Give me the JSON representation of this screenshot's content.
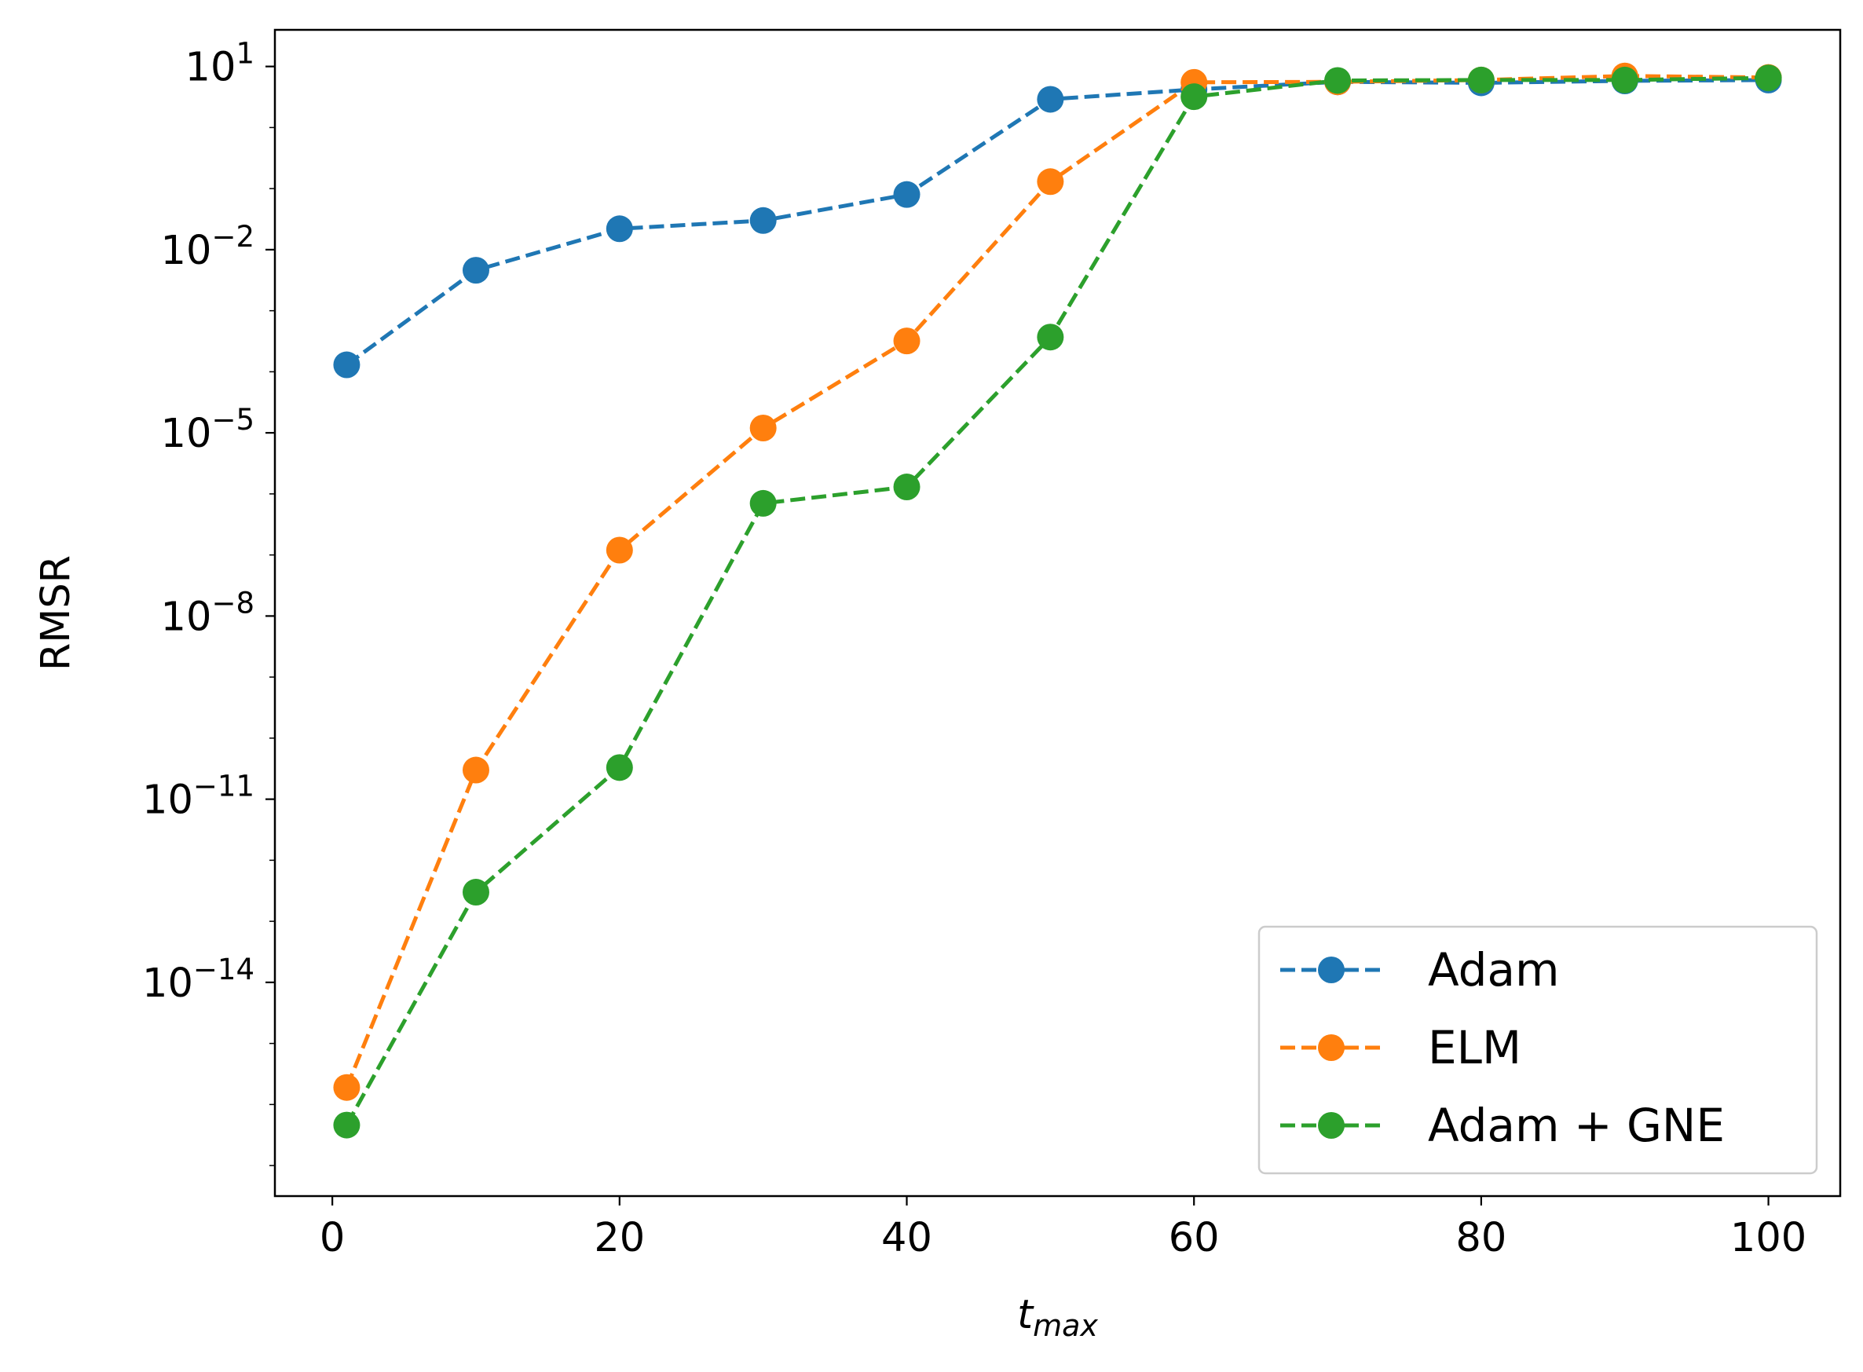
{
  "chart_data": {
    "type": "line",
    "xlabel": "t",
    "xlabel_subscript": "max",
    "ylabel": "RMSR",
    "xlim": [
      -4,
      105
    ],
    "ylim_log10": [
      -17.5,
      1.6
    ],
    "y_scale": "log",
    "grid": false,
    "legend_position": "lower-right",
    "x_ticks": [
      0,
      20,
      40,
      60,
      80,
      100
    ],
    "x_tick_labels": [
      "0",
      "20",
      "40",
      "60",
      "80",
      "100"
    ],
    "y_ticks_exp": [
      1,
      -2,
      -5,
      -8,
      -11,
      -14
    ],
    "y_tick_labels": [
      {
        "base": "10",
        "exp": "1"
      },
      {
        "base": "10",
        "exp": "−2"
      },
      {
        "base": "10",
        "exp": "−5"
      },
      {
        "base": "10",
        "exp": "−8"
      },
      {
        "base": "10",
        "exp": "−11"
      },
      {
        "base": "10",
        "exp": "−14"
      }
    ],
    "x": [
      1,
      10,
      20,
      30,
      40,
      50,
      60,
      70,
      80,
      90,
      100
    ],
    "series": [
      {
        "name": "Adam",
        "color": "#1f77b4",
        "values": [
          0.00013,
          0.0046,
          0.022,
          0.03,
          0.08,
          2.9,
          4.2,
          5.6,
          5.4,
          5.8,
          6.0
        ]
      },
      {
        "name": "ELM",
        "color": "#ff7f0e",
        "values": [
          1.9e-16,
          3e-11,
          1.2e-07,
          1.2e-05,
          0.00032,
          0.13,
          5.5,
          5.6,
          6.0,
          7.0,
          6.6
        ]
      },
      {
        "name": "Adam + GNE",
        "color": "#2ca02c",
        "values": [
          4.6e-17,
          3e-13,
          3.3e-11,
          7e-07,
          1.3e-06,
          0.00037,
          3.2,
          5.9,
          6.0,
          6.0,
          6.5
        ]
      }
    ]
  }
}
